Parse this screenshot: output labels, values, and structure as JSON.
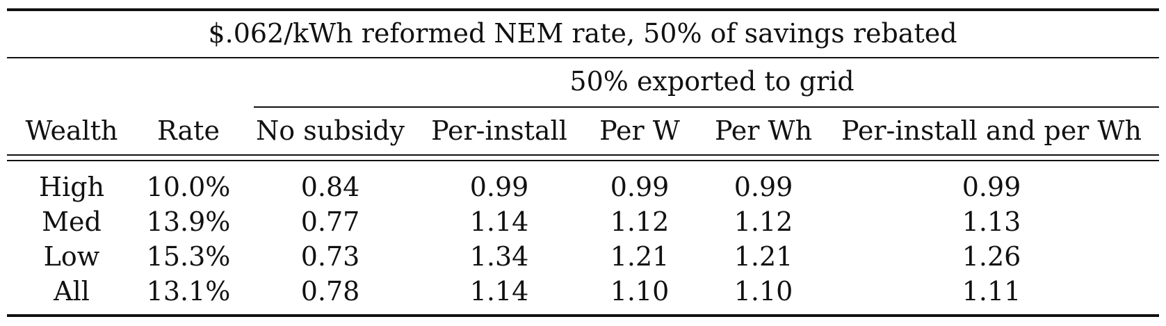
{
  "table": {
    "title": "$.062/kWh reformed NEM rate, 50% of savings rebated",
    "group_header": "50% exported to grid",
    "columns": [
      "Wealth",
      "Rate",
      "No subsidy",
      "Per-install",
      "Per W",
      "Per Wh",
      "Per-install and per Wh"
    ],
    "rows": [
      [
        "High",
        "10.0%",
        "0.84",
        "0.99",
        "0.99",
        "0.99",
        "0.99"
      ],
      [
        "Med",
        "13.9%",
        "0.77",
        "1.14",
        "1.12",
        "1.12",
        "1.13"
      ],
      [
        "Low",
        "15.3%",
        "0.73",
        "1.34",
        "1.21",
        "1.21",
        "1.26"
      ],
      [
        "All",
        "13.1%",
        "0.78",
        "1.14",
        "1.10",
        "1.10",
        "1.11"
      ]
    ]
  }
}
